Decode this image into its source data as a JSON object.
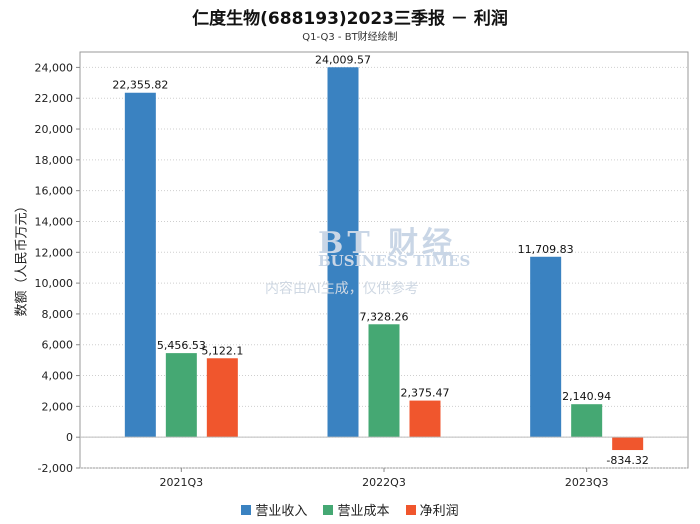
{
  "chart_data": {
    "type": "bar",
    "title": "仁度生物(688193)2023三季报 － 利润",
    "subtitle": "Q1-Q3 - BT财经绘制",
    "ylabel": "数额（人民币万元）",
    "xlabel": "",
    "categories": [
      "2021Q3",
      "2022Q3",
      "2023Q3"
    ],
    "ylim": [
      -2000,
      25000
    ],
    "yticks": [
      "24,000",
      "22,000",
      "20,000",
      "18,000",
      "16,000",
      "14,000",
      "12,000",
      "10,000",
      "8,000",
      "6,000",
      "4,000",
      "2,000",
      "0",
      "-2,000"
    ],
    "series": [
      {
        "name": "营业收入",
        "color": "#3a82c1",
        "values": [
          22355.82,
          24009.57,
          11709.83
        ],
        "labels": [
          "22,355.82",
          "24,009.57",
          "11,709.83"
        ]
      },
      {
        "name": "营业成本",
        "color": "#45a873",
        "values": [
          5456.53,
          7328.26,
          2140.94
        ],
        "labels": [
          "5,456.53",
          "7,328.26",
          "2,140.94"
        ]
      },
      {
        "name": "净利润",
        "color": "#f0562d",
        "values": [
          5122.1,
          2375.47,
          -834.32
        ],
        "labels": [
          "5,122.1",
          "2,375.47",
          "-834.32"
        ]
      }
    ],
    "grid": true,
    "legend_position": "bottom"
  },
  "watermark": {
    "brand": "BT 财经",
    "english": "BUSINESS TIMES",
    "note": "内容由AI生成，仅供参考"
  }
}
